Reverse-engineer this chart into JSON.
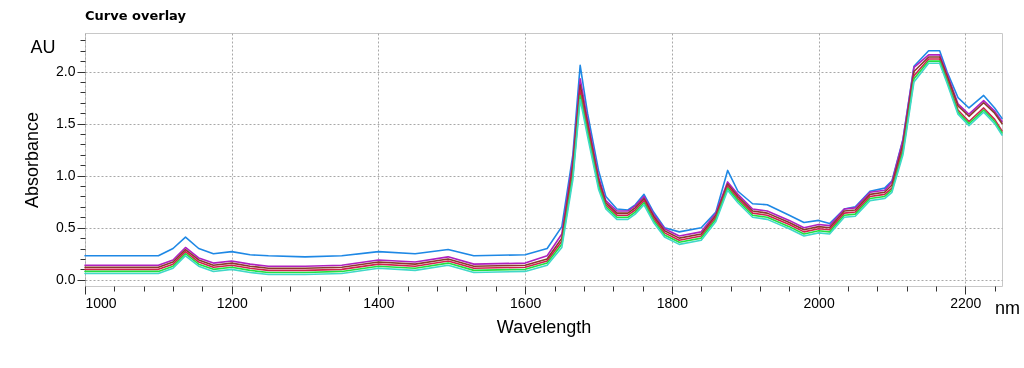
{
  "chart_data": {
    "type": "line",
    "title": "Curve overlay",
    "xlabel": "Wavelength",
    "ylabel": "Absorbance",
    "annotations": [
      "AU",
      "nm"
    ],
    "x": [
      1000,
      1100,
      1120,
      1137,
      1155,
      1175,
      1200,
      1225,
      1250,
      1300,
      1350,
      1400,
      1450,
      1495,
      1530,
      1600,
      1630,
      1650,
      1665,
      1675,
      1685,
      1700,
      1710,
      1725,
      1740,
      1750,
      1762,
      1775,
      1790,
      1810,
      1840,
      1860,
      1876,
      1890,
      1910,
      1930,
      1960,
      1980,
      2000,
      2015,
      2035,
      2050,
      2070,
      2090,
      2100,
      2115,
      2130,
      2150,
      2165,
      2175,
      2190,
      2205,
      2225,
      2240,
      2250
    ],
    "series": [
      {
        "color": "#1e88e5",
        "values": [
          0.23,
          0.23,
          0.3,
          0.41,
          0.3,
          0.25,
          0.27,
          0.24,
          0.23,
          0.22,
          0.23,
          0.27,
          0.25,
          0.29,
          0.23,
          0.24,
          0.3,
          0.51,
          1.2,
          2.06,
          1.6,
          1.05,
          0.8,
          0.68,
          0.67,
          0.72,
          0.82,
          0.65,
          0.5,
          0.46,
          0.5,
          0.65,
          1.05,
          0.85,
          0.73,
          0.72,
          0.62,
          0.55,
          0.57,
          0.54,
          0.68,
          0.7,
          0.85,
          0.88,
          0.95,
          1.35,
          2.05,
          2.2,
          2.2,
          2.0,
          1.75,
          1.65,
          1.77,
          1.65,
          1.55
        ]
      },
      {
        "color": "#b020c0",
        "values": [
          0.14,
          0.14,
          0.19,
          0.31,
          0.21,
          0.16,
          0.18,
          0.15,
          0.13,
          0.13,
          0.14,
          0.19,
          0.17,
          0.22,
          0.15,
          0.16,
          0.23,
          0.44,
          1.15,
          1.93,
          1.54,
          0.99,
          0.76,
          0.66,
          0.66,
          0.71,
          0.8,
          0.63,
          0.49,
          0.42,
          0.46,
          0.64,
          0.94,
          0.82,
          0.68,
          0.66,
          0.57,
          0.5,
          0.53,
          0.52,
          0.68,
          0.69,
          0.84,
          0.86,
          0.94,
          1.34,
          2.04,
          2.16,
          2.16,
          1.98,
          1.69,
          1.59,
          1.72,
          1.62,
          1.52
        ]
      },
      {
        "color": "#8b3a2a",
        "values": [
          0.12,
          0.12,
          0.17,
          0.29,
          0.19,
          0.14,
          0.16,
          0.13,
          0.11,
          0.11,
          0.12,
          0.17,
          0.15,
          0.2,
          0.13,
          0.14,
          0.2,
          0.4,
          1.1,
          1.87,
          1.5,
          0.96,
          0.74,
          0.64,
          0.64,
          0.69,
          0.78,
          0.61,
          0.47,
          0.4,
          0.44,
          0.62,
          0.92,
          0.8,
          0.66,
          0.64,
          0.55,
          0.48,
          0.51,
          0.5,
          0.66,
          0.67,
          0.82,
          0.84,
          0.91,
          1.3,
          2.0,
          2.14,
          2.14,
          1.96,
          1.67,
          1.57,
          1.7,
          1.6,
          1.5
        ]
      },
      {
        "color": "#d02050",
        "values": [
          0.1,
          0.1,
          0.15,
          0.27,
          0.17,
          0.12,
          0.14,
          0.11,
          0.09,
          0.09,
          0.1,
          0.15,
          0.13,
          0.18,
          0.11,
          0.12,
          0.18,
          0.37,
          1.05,
          1.82,
          1.46,
          0.93,
          0.72,
          0.62,
          0.62,
          0.67,
          0.76,
          0.59,
          0.45,
          0.38,
          0.42,
          0.6,
          0.9,
          0.78,
          0.64,
          0.62,
          0.53,
          0.46,
          0.49,
          0.48,
          0.64,
          0.65,
          0.8,
          0.82,
          0.88,
          1.26,
          1.96,
          2.12,
          2.12,
          1.93,
          1.63,
          1.52,
          1.65,
          1.54,
          1.43
        ]
      },
      {
        "color": "#22e040",
        "values": [
          0.08,
          0.08,
          0.13,
          0.25,
          0.15,
          0.1,
          0.12,
          0.09,
          0.07,
          0.07,
          0.08,
          0.13,
          0.11,
          0.16,
          0.09,
          0.1,
          0.16,
          0.34,
          1.0,
          1.77,
          1.42,
          0.9,
          0.7,
          0.6,
          0.6,
          0.65,
          0.74,
          0.57,
          0.43,
          0.36,
          0.4,
          0.58,
          0.88,
          0.76,
          0.62,
          0.6,
          0.51,
          0.44,
          0.47,
          0.46,
          0.62,
          0.63,
          0.78,
          0.8,
          0.86,
          1.23,
          1.93,
          2.1,
          2.1,
          1.91,
          1.61,
          1.5,
          1.63,
          1.52,
          1.41
        ]
      },
      {
        "color": "#40d8c8",
        "values": [
          0.06,
          0.06,
          0.11,
          0.23,
          0.13,
          0.08,
          0.1,
          0.07,
          0.05,
          0.05,
          0.06,
          0.11,
          0.09,
          0.14,
          0.07,
          0.08,
          0.14,
          0.31,
          0.96,
          1.73,
          1.38,
          0.87,
          0.68,
          0.58,
          0.58,
          0.63,
          0.72,
          0.55,
          0.41,
          0.34,
          0.38,
          0.56,
          0.86,
          0.74,
          0.6,
          0.58,
          0.49,
          0.42,
          0.45,
          0.44,
          0.6,
          0.61,
          0.76,
          0.78,
          0.84,
          1.2,
          1.9,
          2.08,
          2.08,
          1.89,
          1.59,
          1.48,
          1.61,
          1.5,
          1.39
        ]
      }
    ],
    "xlim": [
      1000,
      2250
    ],
    "ylim": [
      -0.06,
      2.37
    ],
    "xticks": [
      1000,
      {
        "value": 1040,
        "label": null
      },
      {
        "value": 1080,
        "label": null
      },
      {
        "value": 1120,
        "label": null
      },
      {
        "value": 1160,
        "label": null
      },
      1200,
      {
        "value": 1240,
        "label": null
      },
      {
        "value": 1280,
        "label": null
      },
      {
        "value": 1320,
        "label": null
      },
      {
        "value": 1360,
        "label": null
      },
      1400,
      {
        "value": 1440,
        "label": null
      },
      {
        "value": 1480,
        "label": null
      },
      {
        "value": 1520,
        "label": null
      },
      {
        "value": 1560,
        "label": null
      },
      1600,
      {
        "value": 1640,
        "label": null
      },
      {
        "value": 1680,
        "label": null
      },
      {
        "value": 1720,
        "label": null
      },
      {
        "value": 1760,
        "label": null
      },
      1800,
      {
        "value": 1840,
        "label": null
      },
      {
        "value": 1880,
        "label": null
      },
      {
        "value": 1920,
        "label": null
      },
      {
        "value": 1960,
        "label": null
      },
      2000,
      {
        "value": 2040,
        "label": null
      },
      {
        "value": 2080,
        "label": null
      },
      {
        "value": 2120,
        "label": null
      },
      {
        "value": 2160,
        "label": null
      },
      2200,
      {
        "value": 2240,
        "label": null
      }
    ],
    "yticks": [
      {
        "value": 0,
        "label": "0.0"
      },
      {
        "value": 0.1,
        "label": null
      },
      {
        "value": 0.2,
        "label": null
      },
      {
        "value": 0.3,
        "label": null
      },
      {
        "value": 0.4,
        "label": null
      },
      {
        "value": 0.5,
        "label": "0.5"
      },
      {
        "value": 0.6,
        "label": null
      },
      {
        "value": 0.7,
        "label": null
      },
      {
        "value": 0.8,
        "label": null
      },
      {
        "value": 0.9,
        "label": null
      },
      {
        "value": 1,
        "label": "1.0"
      },
      {
        "value": 1.1,
        "label": null
      },
      {
        "value": 1.2,
        "label": null
      },
      {
        "value": 1.3,
        "label": null
      },
      {
        "value": 1.4,
        "label": null
      },
      {
        "value": 1.5,
        "label": "1.5"
      },
      {
        "value": 1.6,
        "label": null
      },
      {
        "value": 1.7,
        "label": null
      },
      {
        "value": 1.8,
        "label": null
      },
      {
        "value": 1.9,
        "label": null
      },
      {
        "value": 2,
        "label": "2.0"
      },
      {
        "value": 2.1,
        "label": null
      },
      {
        "value": 2.2,
        "label": null
      },
      {
        "value": 2.3,
        "label": null
      }
    ],
    "grid": true,
    "legend": false,
    "marker": "none",
    "line_style": "solid"
  }
}
